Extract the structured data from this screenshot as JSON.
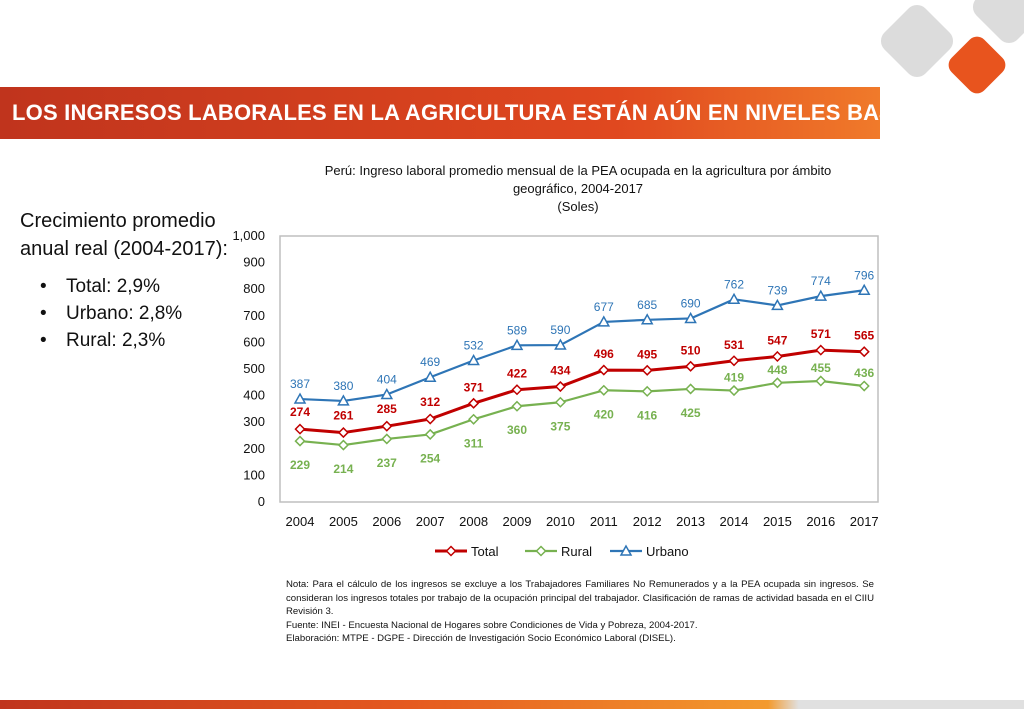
{
  "slide": {
    "title": "LOS INGRESOS LABORALES EN LA AGRICULTURA ESTÁN AÚN EN NIVELES BAJOS",
    "side_heading": "Crecimiento promedio anual real (2004-2017):",
    "bullets": [
      "Total: 2,9%",
      "Urbano: 2,8%",
      "Rural: 2,3%"
    ],
    "notes": [
      "Nota:   Para el cálculo de los ingresos se excluye a los Trabajadores Familiares No Remunerados y a la PEA ocupada sin ingresos. Se consideran los ingresos totales por trabajo de la ocupación principal del trabajador. Clasificación de ramas de actividad basada en el CIIU Revisión 3.",
      "Fuente: INEI - Encuesta Nacional de Hogares sobre Condiciones de Vida y Pobreza, 2004-2017.",
      "Elaboración: MTPE - DGPE - Dirección de Investigación Socio Económico Laboral (DISEL)."
    ],
    "colors": {
      "total": "#c00000",
      "rural": "#77b150",
      "urbano": "#2e75b6",
      "title_bar": "#d9431f",
      "logo_gray": "#dcdcdc",
      "logo_orange": "#e8541e"
    }
  },
  "chart_data": {
    "type": "line",
    "title_lines": [
      "Perú: Ingreso laboral promedio mensual de la PEA ocupada en la agricultura por ámbito",
      "geográfico, 2004-2017",
      "(Soles)"
    ],
    "categories": [
      "2004",
      "2005",
      "2006",
      "2007",
      "2008",
      "2009",
      "2010",
      "2011",
      "2012",
      "2013",
      "2014",
      "2015",
      "2016",
      "2017"
    ],
    "ylim": [
      0,
      1000
    ],
    "yticks": [
      "0",
      "100",
      "200",
      "300",
      "400",
      "500",
      "600",
      "700",
      "800",
      "900",
      "1,000"
    ],
    "legend_position": "bottom",
    "series": [
      {
        "name": "Total",
        "marker": "diamond",
        "values": [
          274,
          261,
          285,
          312,
          371,
          422,
          434,
          496,
          495,
          510,
          531,
          547,
          571,
          565
        ]
      },
      {
        "name": "Rural",
        "marker": "diamond",
        "values": [
          229,
          214,
          237,
          254,
          311,
          360,
          375,
          420,
          416,
          425,
          419,
          448,
          455,
          436
        ]
      },
      {
        "name": "Urbano",
        "marker": "triangle",
        "values": [
          387,
          380,
          404,
          469,
          532,
          589,
          590,
          677,
          685,
          690,
          762,
          739,
          774,
          796
        ]
      }
    ]
  }
}
